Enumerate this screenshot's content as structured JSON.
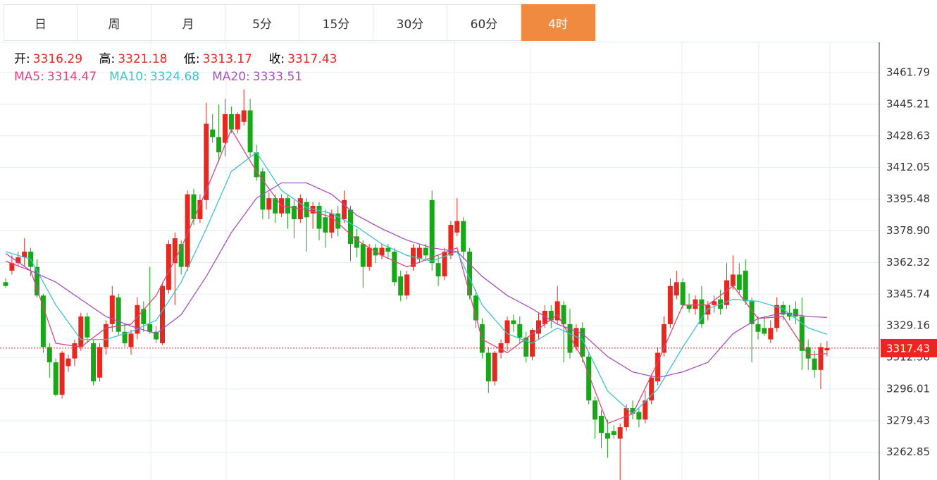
{
  "tabs": [
    "日",
    "周",
    "月",
    "5分",
    "15分",
    "30分",
    "60分",
    "4时"
  ],
  "active_tab": 7,
  "info": {
    "open_label": "开:",
    "open": 3316.29,
    "high_label": "高:",
    "high": 3321.18,
    "low_label": "低:",
    "low": 3313.17,
    "close_label": "收:",
    "close": 3317.43
  },
  "chart_data": {
    "type": "candlestick",
    "ylim": [
      3248.35,
      3477.67
    ],
    "yticks": [
      3461.79,
      3445.21,
      3428.63,
      3412.05,
      3395.48,
      {
        "value": 3378.9,
        "label": "3378.90"
      },
      3362.32,
      3345.74,
      3329.16,
      3312.58,
      3296.01,
      3279.43,
      3262.85
    ],
    "up_color": "#e8281e",
    "down_color": "#17a817",
    "last_price": 3317.43,
    "last_price_color": "#e8281e",
    "candles": [
      [
        3352,
        3354,
        3349,
        3350
      ],
      [
        3358,
        3366,
        3356,
        3362
      ],
      [
        3362,
        3368,
        3360,
        3365
      ],
      [
        3365,
        3375,
        3360,
        3368
      ],
      [
        3368,
        3370,
        3355,
        3360
      ],
      [
        3360,
        3364,
        3344,
        3345
      ],
      [
        3345,
        3346,
        3315,
        3318
      ],
      [
        3318,
        3320,
        3302,
        3310
      ],
      [
        3310,
        3312,
        3292,
        3293
      ],
      [
        3293,
        3316,
        3291,
        3315
      ],
      [
        3308,
        3314,
        3305,
        3312
      ],
      [
        3312,
        3322,
        3308,
        3320
      ],
      [
        3318,
        3336,
        3316,
        3334
      ],
      [
        3334,
        3336,
        3320,
        3323
      ],
      [
        3320,
        3322,
        3298,
        3300
      ],
      [
        3302,
        3320,
        3300,
        3318
      ],
      [
        3318,
        3332,
        3314,
        3330
      ],
      [
        3330,
        3350,
        3326,
        3345
      ],
      [
        3344,
        3346,
        3324,
        3326
      ],
      [
        3326,
        3330,
        3318,
        3320
      ],
      [
        3318,
        3327,
        3314,
        3325
      ],
      [
        3325,
        3344,
        3322,
        3340
      ],
      [
        3338,
        3342,
        3326,
        3330
      ],
      [
        3330,
        3360,
        3325,
        3326
      ],
      [
        3326,
        3329,
        3320,
        3322
      ],
      [
        3320,
        3352,
        3319,
        3350
      ],
      [
        3348,
        3374,
        3346,
        3372
      ],
      [
        3362,
        3378,
        3340,
        3375
      ],
      [
        3372,
        3374,
        3356,
        3360
      ],
      [
        3360,
        3400,
        3358,
        3398
      ],
      [
        3398,
        3401,
        3382,
        3385
      ],
      [
        3385,
        3398,
        3383,
        3395
      ],
      [
        3395,
        3446,
        3390,
        3435
      ],
      [
        3432,
        3440,
        3425,
        3428
      ],
      [
        3428,
        3445,
        3415,
        3420
      ],
      [
        3425,
        3448,
        3418,
        3440
      ],
      [
        3440,
        3444,
        3430,
        3432
      ],
      [
        3432,
        3441,
        3430,
        3440
      ],
      [
        3436,
        3453,
        3434,
        3442
      ],
      [
        3442,
        3448,
        3418,
        3420
      ],
      [
        3420,
        3424,
        3405,
        3407
      ],
      [
        3410,
        3412,
        3385,
        3390
      ],
      [
        3390,
        3399,
        3385,
        3396
      ],
      [
        3396,
        3398,
        3383,
        3388
      ],
      [
        3388,
        3398,
        3386,
        3396
      ],
      [
        3396,
        3398,
        3380,
        3388
      ],
      [
        3392,
        3395,
        3375,
        3385
      ],
      [
        3385,
        3398,
        3383,
        3396
      ],
      [
        3394,
        3396,
        3368,
        3386
      ],
      [
        3388,
        3394,
        3380,
        3392
      ],
      [
        3392,
        3394,
        3374,
        3380
      ],
      [
        3386,
        3390,
        3370,
        3378
      ],
      [
        3378,
        3390,
        3375,
        3388
      ],
      [
        3388,
        3392,
        3376,
        3380
      ],
      [
        3385,
        3400,
        3383,
        3395
      ],
      [
        3390,
        3392,
        3363,
        3372
      ],
      [
        3376,
        3380,
        3365,
        3370
      ],
      [
        3372,
        3374,
        3349,
        3360
      ],
      [
        3360,
        3372,
        3358,
        3370
      ],
      [
        3370,
        3372,
        3362,
        3366
      ],
      [
        3366,
        3372,
        3364,
        3370
      ],
      [
        3370,
        3372,
        3364,
        3368
      ],
      [
        3368,
        3370,
        3350,
        3352
      ],
      [
        3355,
        3358,
        3342,
        3345
      ],
      [
        3345,
        3358,
        3343,
        3356
      ],
      [
        3360,
        3372,
        3358,
        3370
      ],
      [
        3364,
        3372,
        3362,
        3370
      ],
      [
        3370,
        3372,
        3363,
        3366
      ],
      [
        3395,
        3400,
        3358,
        3362
      ],
      [
        3362,
        3366,
        3350,
        3355
      ],
      [
        3355,
        3370,
        3353,
        3368
      ],
      [
        3366,
        3384,
        3364,
        3382
      ],
      [
        3378,
        3396,
        3376,
        3384
      ],
      [
        3384,
        3386,
        3364,
        3368
      ],
      [
        3368,
        3370,
        3343,
        3345
      ],
      [
        3345,
        3348,
        3328,
        3332
      ],
      [
        3330,
        3333,
        3312,
        3315
      ],
      [
        3315,
        3318,
        3294,
        3300
      ],
      [
        3300,
        3316,
        3298,
        3315
      ],
      [
        3315,
        3322,
        3312,
        3320
      ],
      [
        3320,
        3334,
        3316,
        3332
      ],
      [
        3332,
        3335,
        3326,
        3330
      ],
      [
        3330,
        3334,
        3320,
        3323
      ],
      [
        3323,
        3326,
        3310,
        3313
      ],
      [
        3313,
        3328,
        3311,
        3327
      ],
      [
        3325,
        3336,
        3322,
        3332
      ],
      [
        3330,
        3340,
        3328,
        3337
      ],
      [
        3337,
        3340,
        3328,
        3332
      ],
      [
        3332,
        3350,
        3330,
        3342
      ],
      [
        3340,
        3342,
        3310,
        3330
      ],
      [
        3330,
        3338,
        3312,
        3315
      ],
      [
        3318,
        3330,
        3316,
        3328
      ],
      [
        3328,
        3331,
        3310,
        3313
      ],
      [
        3313,
        3315,
        3288,
        3290
      ],
      [
        3290,
        3292,
        3270,
        3280
      ],
      [
        3282,
        3285,
        3265,
        3273
      ],
      [
        3273,
        3280,
        3260,
        3270
      ],
      [
        3274,
        3277,
        3270,
        3272
      ],
      [
        3270,
        3278,
        3248,
        3276
      ],
      [
        3276,
        3288,
        3274,
        3286
      ],
      [
        3286,
        3290,
        3280,
        3283
      ],
      [
        3284,
        3286,
        3276,
        3280
      ],
      [
        3280,
        3295,
        3278,
        3290
      ],
      [
        3290,
        3304,
        3288,
        3302
      ],
      [
        3300,
        3318,
        3298,
        3315
      ],
      [
        3315,
        3334,
        3313,
        3330
      ],
      [
        3330,
        3354,
        3328,
        3350
      ],
      [
        3345,
        3358,
        3343,
        3352
      ],
      [
        3352,
        3354,
        3338,
        3340
      ],
      [
        3340,
        3346,
        3336,
        3338
      ],
      [
        3338,
        3345,
        3335,
        3343
      ],
      [
        3343,
        3350,
        3328,
        3330
      ],
      [
        3335,
        3342,
        3332,
        3340
      ],
      [
        3340,
        3345,
        3336,
        3342
      ],
      [
        3343,
        3348,
        3335,
        3338
      ],
      [
        3340,
        3362,
        3338,
        3353
      ],
      [
        3350,
        3366,
        3348,
        3356
      ],
      [
        3356,
        3362,
        3346,
        3348
      ],
      [
        3358,
        3364,
        3340,
        3342
      ],
      [
        3342,
        3344,
        3310,
        3330
      ],
      [
        3330,
        3334,
        3322,
        3326
      ],
      [
        3328,
        3334,
        3324,
        3325
      ],
      [
        3322,
        3332,
        3320,
        3328
      ],
      [
        3328,
        3344,
        3326,
        3340
      ],
      [
        3340,
        3342,
        3332,
        3335
      ],
      [
        3336,
        3340,
        3332,
        3334
      ],
      [
        3338,
        3342,
        3330,
        3334
      ],
      [
        3334,
        3344,
        3306,
        3316
      ],
      [
        3318,
        3322,
        3306,
        3312
      ],
      [
        3312,
        3316,
        3302,
        3306
      ],
      [
        3306,
        3320,
        3296,
        3318
      ],
      [
        3316.29,
        3321.18,
        3313.17,
        3317.43
      ]
    ],
    "series": [
      {
        "name": "MA5:",
        "current": 3314.47,
        "color": "#e0457b",
        "x": [
          0,
          4,
          8,
          12,
          16,
          20,
          24,
          28,
          32,
          36,
          40,
          44,
          48,
          52,
          56,
          60,
          64,
          68,
          72,
          76,
          80,
          84,
          88,
          92,
          96,
          100,
          104,
          108,
          112,
          116,
          120,
          124,
          128,
          131
        ],
        "values": [
          3363,
          3358,
          3320,
          3318,
          3328,
          3330,
          3345,
          3370,
          3400,
          3432,
          3410,
          3392,
          3390,
          3386,
          3374,
          3366,
          3360,
          3365,
          3370,
          3322,
          3315,
          3325,
          3335,
          3312,
          3278,
          3283,
          3310,
          3340,
          3340,
          3350,
          3333,
          3334,
          3314,
          3314.47
        ]
      },
      {
        "name": "MA10:",
        "current": 3324.68,
        "color": "#3cc3cf",
        "x": [
          0,
          4,
          8,
          12,
          16,
          20,
          24,
          28,
          32,
          36,
          40,
          44,
          48,
          52,
          56,
          60,
          64,
          68,
          72,
          76,
          80,
          84,
          88,
          92,
          96,
          100,
          104,
          108,
          112,
          116,
          120,
          124,
          128,
          131
        ],
        "values": [
          3368,
          3364,
          3340,
          3322,
          3322,
          3326,
          3332,
          3352,
          3380,
          3410,
          3420,
          3400,
          3391,
          3388,
          3381,
          3372,
          3366,
          3363,
          3368,
          3340,
          3325,
          3320,
          3328,
          3322,
          3295,
          3283,
          3296,
          3318,
          3338,
          3343,
          3342,
          3338,
          3328,
          3324.68
        ]
      },
      {
        "name": "MA20:",
        "current": 3333.51,
        "color": "#a84fc2",
        "x": [
          0,
          4,
          8,
          12,
          16,
          20,
          24,
          28,
          32,
          36,
          40,
          44,
          48,
          52,
          56,
          60,
          64,
          68,
          72,
          76,
          80,
          84,
          88,
          92,
          96,
          100,
          104,
          108,
          112,
          116,
          120,
          124,
          128,
          131
        ],
        "values": [
          3367,
          3358,
          3352,
          3343,
          3334,
          3329,
          3325,
          3335,
          3355,
          3378,
          3396,
          3404,
          3404,
          3398,
          3387,
          3380,
          3374,
          3370,
          3368,
          3355,
          3345,
          3338,
          3330,
          3325,
          3313,
          3305,
          3302,
          3305,
          3310,
          3325,
          3333,
          3336,
          3334,
          3333.51
        ]
      }
    ]
  }
}
